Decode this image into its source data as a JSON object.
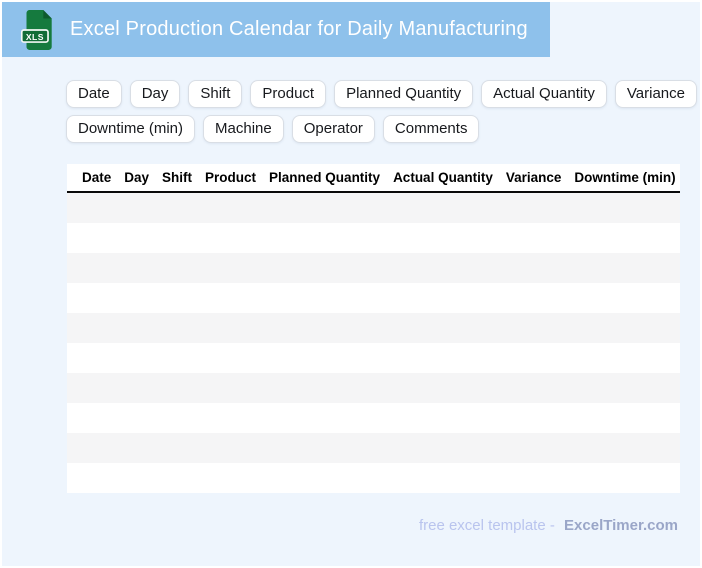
{
  "header": {
    "title": "Excel Production Calendar for Daily Manufacturing",
    "icon_label": "XLS"
  },
  "chips": {
    "row1": [
      "Date",
      "Day",
      "Shift",
      "Product",
      "Planned Quantity",
      "Actual Quantity",
      "Variance"
    ],
    "row2": [
      "Downtime (min)",
      "Machine",
      "Operator",
      "Comments"
    ]
  },
  "table": {
    "columns": [
      "Date",
      "Day",
      "Shift",
      "Product",
      "Planned Quantity",
      "Actual Quantity",
      "Variance",
      "Downtime (min)"
    ],
    "row_count": 10,
    "stripe_color": "#f5f5f6"
  },
  "footer": {
    "prefix": "free excel template -",
    "brand": "ExcelTimer.com"
  },
  "colors": {
    "page_bg": "#eef5fd",
    "header_bg": "#8ec1eb",
    "icon_green": "#157a3e",
    "icon_fold_green": "#0d5a2d",
    "icon_badge_green": "#126c36",
    "chip_border": "#d9dee5",
    "footer_prefix": "#b9c4ee",
    "footer_brand": "#9aa6c8"
  }
}
